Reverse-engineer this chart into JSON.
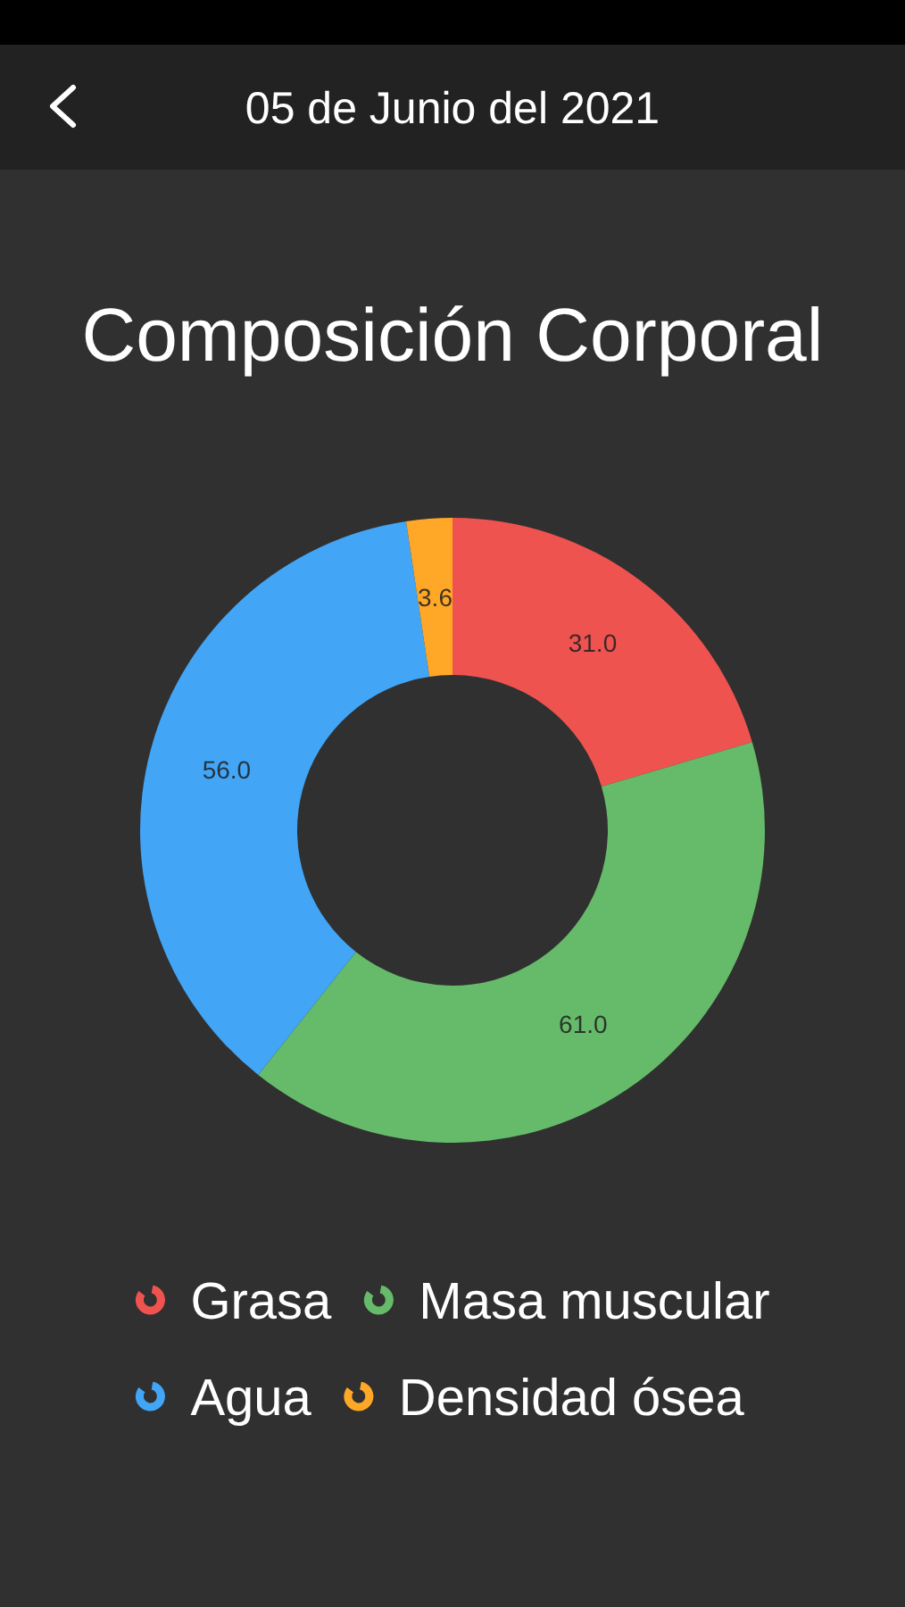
{
  "chart_data": {
    "type": "donut",
    "title": "Composición Corporal",
    "subtitle": "05 de Junio del 2021",
    "categories": [
      "Grasa",
      "Masa muscular",
      "Agua",
      "Densidad ósea"
    ],
    "values": [
      31.0,
      61.0,
      56.0,
      3.6
    ],
    "colors": [
      "#ef5350",
      "#66bb6a",
      "#42a5f5",
      "#ffa726"
    ],
    "value_labels": [
      "31.0",
      "61.0",
      "56.0",
      "3.6"
    ],
    "legend": "bottom"
  }
}
